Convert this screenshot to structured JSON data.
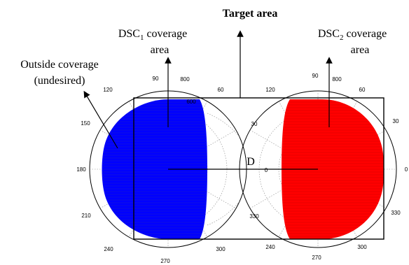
{
  "title": "Target area",
  "labels": {
    "dsc1_prefix": "DSC",
    "dsc1_sub": "1",
    "dsc1_suffix": " coverage",
    "dsc1_line2": "area",
    "dsc2_prefix": "DSC",
    "dsc2_sub": "2",
    "dsc2_suffix": " coverage",
    "dsc2_line2": "area",
    "outside_line1": "Outside coverage",
    "outside_line2": "(undesired)",
    "distance": "D"
  },
  "left_polar": {
    "angles": {
      "a90": "90",
      "a120": "120",
      "a150": "150",
      "a180": "180",
      "a210": "210",
      "a240": "240",
      "a270": "270",
      "a300": "300",
      "a60": "60"
    },
    "radii": {
      "r800": "800",
      "r600": "600"
    },
    "fill_color": "#0000ff"
  },
  "right_polar": {
    "angles": {
      "a90": "90",
      "a120": "120",
      "a60": "60",
      "a30": "30",
      "a0": "0",
      "a330": "330",
      "a300": "300",
      "a270": "270",
      "a240": "240"
    },
    "radii": {
      "r800": "800"
    },
    "inner": {
      "i30": "30",
      "i0": "0",
      "i330": "330",
      "i0b": "0"
    },
    "fill_color": "#ff0000"
  },
  "colors": {
    "left": "#0000ff",
    "right": "#ff0000",
    "ink": "#000000"
  }
}
